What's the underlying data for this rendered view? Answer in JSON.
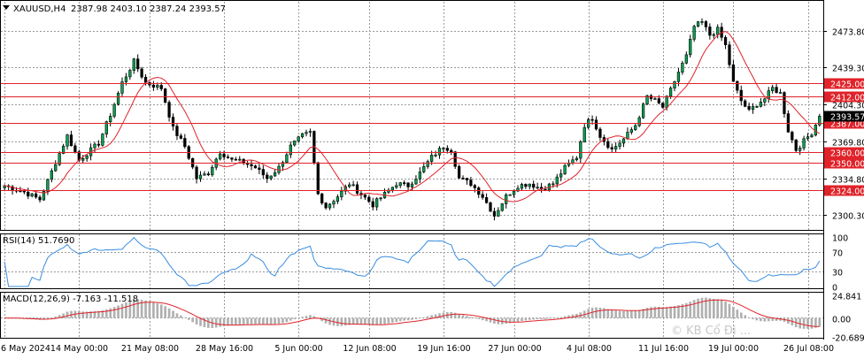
{
  "header": {
    "symbol_label": "XAUUSD,H4",
    "ohlc_label": "2387.98 2403.10 2387.24 2393.57",
    "rsi_label": "RSI(14) 51.7690",
    "macd_label": "MACD(12,26,9) -7.163 -11.518",
    "watermark": "© KB Cổ Đi ..."
  },
  "colors": {
    "up_candle": "#000000",
    "down_candle": "#000000",
    "wick": "#000000",
    "ma_line": "#e0232a",
    "level_line": "#e0232a",
    "level_tag_bg": "#e0232a",
    "level_tag_text": "#ffffff",
    "current_price_tag_bg": "#000000",
    "current_price_tag_text": "#ffffff",
    "rsi_line": "#3b8ee0",
    "macd_hist": "#b0b0b0",
    "macd_signal": "#e0232a",
    "grid": "#9a9a9a",
    "axis_text": "#000000"
  },
  "chart_data": [
    {
      "type": "candlestick",
      "panel": "price",
      "series_label": "XAUUSD,H4",
      "ylim": [
        2288,
        2488
      ],
      "y_ticks": [
        2473.8,
        2439.3,
        2404.3,
        2369.8,
        2334.8,
        2300.3
      ],
      "x_tick_labels": [
        "6 May 2024",
        "14 May 00:00",
        "21 May 08:00",
        "28 May 16:00",
        "5 Jun 00:00",
        "12 Jun 08:00",
        "19 Jun 16:00",
        "27 Jun 00:00",
        "4 Jul 08:00",
        "11 Jul 16:00",
        "19 Jul 00:00",
        "26 Jul 08:00"
      ],
      "levels": [
        2425.0,
        2412.0,
        2387.0,
        2360.0,
        2350.0,
        2324.0
      ],
      "current_price": 2393.57,
      "grid": true,
      "price_path": [
        {
          "i": 0,
          "p": 2328
        },
        {
          "i": 5,
          "p": 2322
        },
        {
          "i": 9,
          "p": 2315
        },
        {
          "i": 13,
          "p": 2350
        },
        {
          "i": 16,
          "p": 2375
        },
        {
          "i": 19,
          "p": 2352
        },
        {
          "i": 24,
          "p": 2368
        },
        {
          "i": 27,
          "p": 2395
        },
        {
          "i": 30,
          "p": 2425
        },
        {
          "i": 33,
          "p": 2445
        },
        {
          "i": 36,
          "p": 2425
        },
        {
          "i": 40,
          "p": 2420
        },
        {
          "i": 43,
          "p": 2382
        },
        {
          "i": 46,
          "p": 2365
        },
        {
          "i": 49,
          "p": 2335
        },
        {
          "i": 52,
          "p": 2340
        },
        {
          "i": 55,
          "p": 2360
        },
        {
          "i": 58,
          "p": 2352
        },
        {
          "i": 61,
          "p": 2350
        },
        {
          "i": 64,
          "p": 2345
        },
        {
          "i": 67,
          "p": 2335
        },
        {
          "i": 70,
          "p": 2345
        },
        {
          "i": 73,
          "p": 2365
        },
        {
          "i": 76,
          "p": 2375
        },
        {
          "i": 78,
          "p": 2378
        },
        {
          "i": 80,
          "p": 2320
        },
        {
          "i": 82,
          "p": 2308
        },
        {
          "i": 85,
          "p": 2318
        },
        {
          "i": 88,
          "p": 2330
        },
        {
          "i": 91,
          "p": 2320
        },
        {
          "i": 94,
          "p": 2310
        },
        {
          "i": 97,
          "p": 2320
        },
        {
          "i": 100,
          "p": 2330
        },
        {
          "i": 103,
          "p": 2328
        },
        {
          "i": 106,
          "p": 2340
        },
        {
          "i": 109,
          "p": 2355
        },
        {
          "i": 112,
          "p": 2365
        },
        {
          "i": 114,
          "p": 2362
        },
        {
          "i": 116,
          "p": 2335
        },
        {
          "i": 119,
          "p": 2330
        },
        {
          "i": 122,
          "p": 2318
        },
        {
          "i": 125,
          "p": 2300
        },
        {
          "i": 128,
          "p": 2318
        },
        {
          "i": 131,
          "p": 2328
        },
        {
          "i": 134,
          "p": 2330
        },
        {
          "i": 137,
          "p": 2325
        },
        {
          "i": 140,
          "p": 2330
        },
        {
          "i": 143,
          "p": 2345
        },
        {
          "i": 146,
          "p": 2355
        },
        {
          "i": 148,
          "p": 2385
        },
        {
          "i": 150,
          "p": 2392
        },
        {
          "i": 152,
          "p": 2375
        },
        {
          "i": 155,
          "p": 2362
        },
        {
          "i": 158,
          "p": 2372
        },
        {
          "i": 161,
          "p": 2385
        },
        {
          "i": 164,
          "p": 2412
        },
        {
          "i": 166,
          "p": 2408
        },
        {
          "i": 168,
          "p": 2402
        },
        {
          "i": 170,
          "p": 2418
        },
        {
          "i": 172,
          "p": 2435
        },
        {
          "i": 174,
          "p": 2450
        },
        {
          "i": 176,
          "p": 2478
        },
        {
          "i": 178,
          "p": 2482
        },
        {
          "i": 180,
          "p": 2470
        },
        {
          "i": 182,
          "p": 2475
        },
        {
          "i": 184,
          "p": 2460
        },
        {
          "i": 186,
          "p": 2425
        },
        {
          "i": 188,
          "p": 2408
        },
        {
          "i": 190,
          "p": 2398
        },
        {
          "i": 192,
          "p": 2405
        },
        {
          "i": 194,
          "p": 2410
        },
        {
          "i": 196,
          "p": 2420
        },
        {
          "i": 198,
          "p": 2415
        },
        {
          "i": 200,
          "p": 2380
        },
        {
          "i": 202,
          "p": 2362
        },
        {
          "i": 204,
          "p": 2370
        },
        {
          "i": 206,
          "p": 2378
        },
        {
          "i": 208,
          "p": 2393.57
        }
      ]
    },
    {
      "type": "line",
      "panel": "rsi",
      "series_label": "RSI(14) 51.7690",
      "ylim": [
        0,
        100
      ],
      "y_ticks": [
        100,
        70,
        30,
        0
      ],
      "y_tick_labels": [
        "100",
        "70",
        "30",
        "0"
      ],
      "last_value": 51.769
    },
    {
      "type": "bar+line",
      "panel": "macd",
      "series_label": "MACD(12,26,9) -7.163 -11.518",
      "ylim": [
        -20.689,
        24.841
      ],
      "y_ticks": [
        24.841,
        0.0,
        -20.689
      ],
      "y_tick_labels": [
        "24.841",
        "0.00",
        "-20.689"
      ],
      "last_macd": -7.163,
      "last_signal": -11.518
    }
  ]
}
